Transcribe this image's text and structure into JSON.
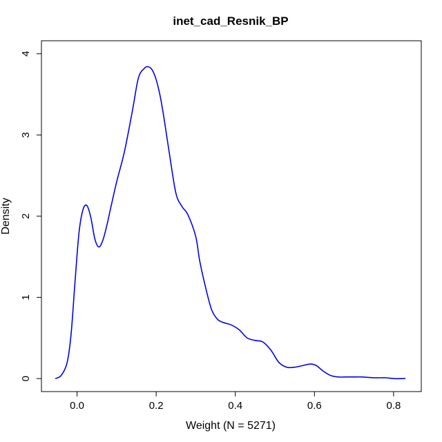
{
  "chart_data": {
    "type": "line",
    "title": "inet_cad_Resnik_BP",
    "xlabel": "Weight (N = 5271)",
    "ylabel": "Density",
    "xlim": [
      -0.09,
      0.87
    ],
    "ylim": [
      -0.16,
      4.16
    ],
    "xticks": [
      0.0,
      0.2,
      0.4,
      0.6,
      0.8
    ],
    "xtick_labels": [
      "0.0",
      "0.2",
      "0.4",
      "0.6",
      "0.8"
    ],
    "yticks": [
      0,
      1,
      2,
      3,
      4
    ],
    "ytick_labels": [
      "0",
      "1",
      "2",
      "3",
      "4"
    ],
    "grid": false,
    "legend": "none",
    "series": [
      {
        "color": "#0000ee",
        "x": [
          -0.055,
          -0.04,
          -0.025,
          -0.015,
          -0.005,
          0.005,
          0.015,
          0.025,
          0.035,
          0.045,
          0.055,
          0.065,
          0.075,
          0.085,
          0.1,
          0.12,
          0.14,
          0.155,
          0.17,
          0.18,
          0.19,
          0.2,
          0.21,
          0.22,
          0.235,
          0.25,
          0.265,
          0.28,
          0.3,
          0.31,
          0.325,
          0.34,
          0.355,
          0.37,
          0.39,
          0.41,
          0.43,
          0.45,
          0.47,
          0.49,
          0.51,
          0.53,
          0.55,
          0.57,
          0.59,
          0.605,
          0.62,
          0.64,
          0.66,
          0.68,
          0.7,
          0.72,
          0.75,
          0.78,
          0.8,
          0.83
        ],
        "y": [
          0.0,
          0.04,
          0.2,
          0.55,
          1.2,
          1.8,
          2.08,
          2.13,
          1.98,
          1.72,
          1.62,
          1.7,
          1.88,
          2.1,
          2.42,
          2.8,
          3.3,
          3.7,
          3.82,
          3.84,
          3.8,
          3.68,
          3.48,
          3.2,
          2.72,
          2.28,
          2.12,
          2.02,
          1.75,
          1.45,
          1.12,
          0.85,
          0.73,
          0.69,
          0.66,
          0.6,
          0.5,
          0.47,
          0.45,
          0.35,
          0.2,
          0.14,
          0.14,
          0.16,
          0.18,
          0.16,
          0.1,
          0.04,
          0.02,
          0.02,
          0.02,
          0.02,
          0.01,
          0.01,
          0.0,
          0.0
        ]
      }
    ]
  }
}
